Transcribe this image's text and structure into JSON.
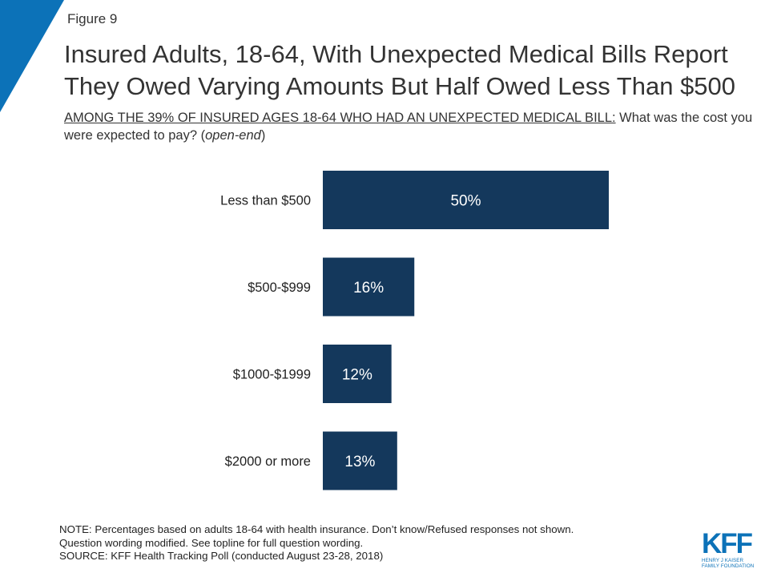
{
  "figure_label": "Figure 9",
  "title_line1": "Insured Adults, 18-64, With Unexpected Medical Bills Report",
  "title_line2": "They Owed Varying Amounts But Half Owed Less Than $500",
  "subtitle": {
    "qualifier": "AMONG THE 39% OF INSURED AGES 18-64 WHO HAD AN UNEXPECTED MEDICAL BILL:",
    "question_part1": " What was the cost you were expected to pay? (",
    "question_italic": "open-end",
    "question_part2": ")"
  },
  "chart_data": {
    "type": "bar",
    "orientation": "horizontal",
    "categories": [
      "Less than $500",
      "$500-$999",
      "$1000-$1999",
      "$2000 or more"
    ],
    "values": [
      50,
      16,
      12,
      13
    ],
    "value_labels": [
      "50%",
      "16%",
      "12%",
      "13%"
    ],
    "unit": "%",
    "xlim": [
      0,
      100
    ],
    "grid": false,
    "colors": {
      "bar": "#14385c",
      "label": "#ffffff"
    }
  },
  "notes": [
    "NOTE: Percentages based on adults 18-64 with health insurance. Don’t know/Refused responses not shown.",
    "Question wording modified. See topline for full question wording.",
    "SOURCE: KFF Health Tracking Poll (conducted August 23-28, 2018)"
  ],
  "logo": {
    "word": "KFF",
    "line1": "HENRY J KAISER",
    "line2": "FAMILY FOUNDATION"
  },
  "accent_color": "#0c72b8"
}
